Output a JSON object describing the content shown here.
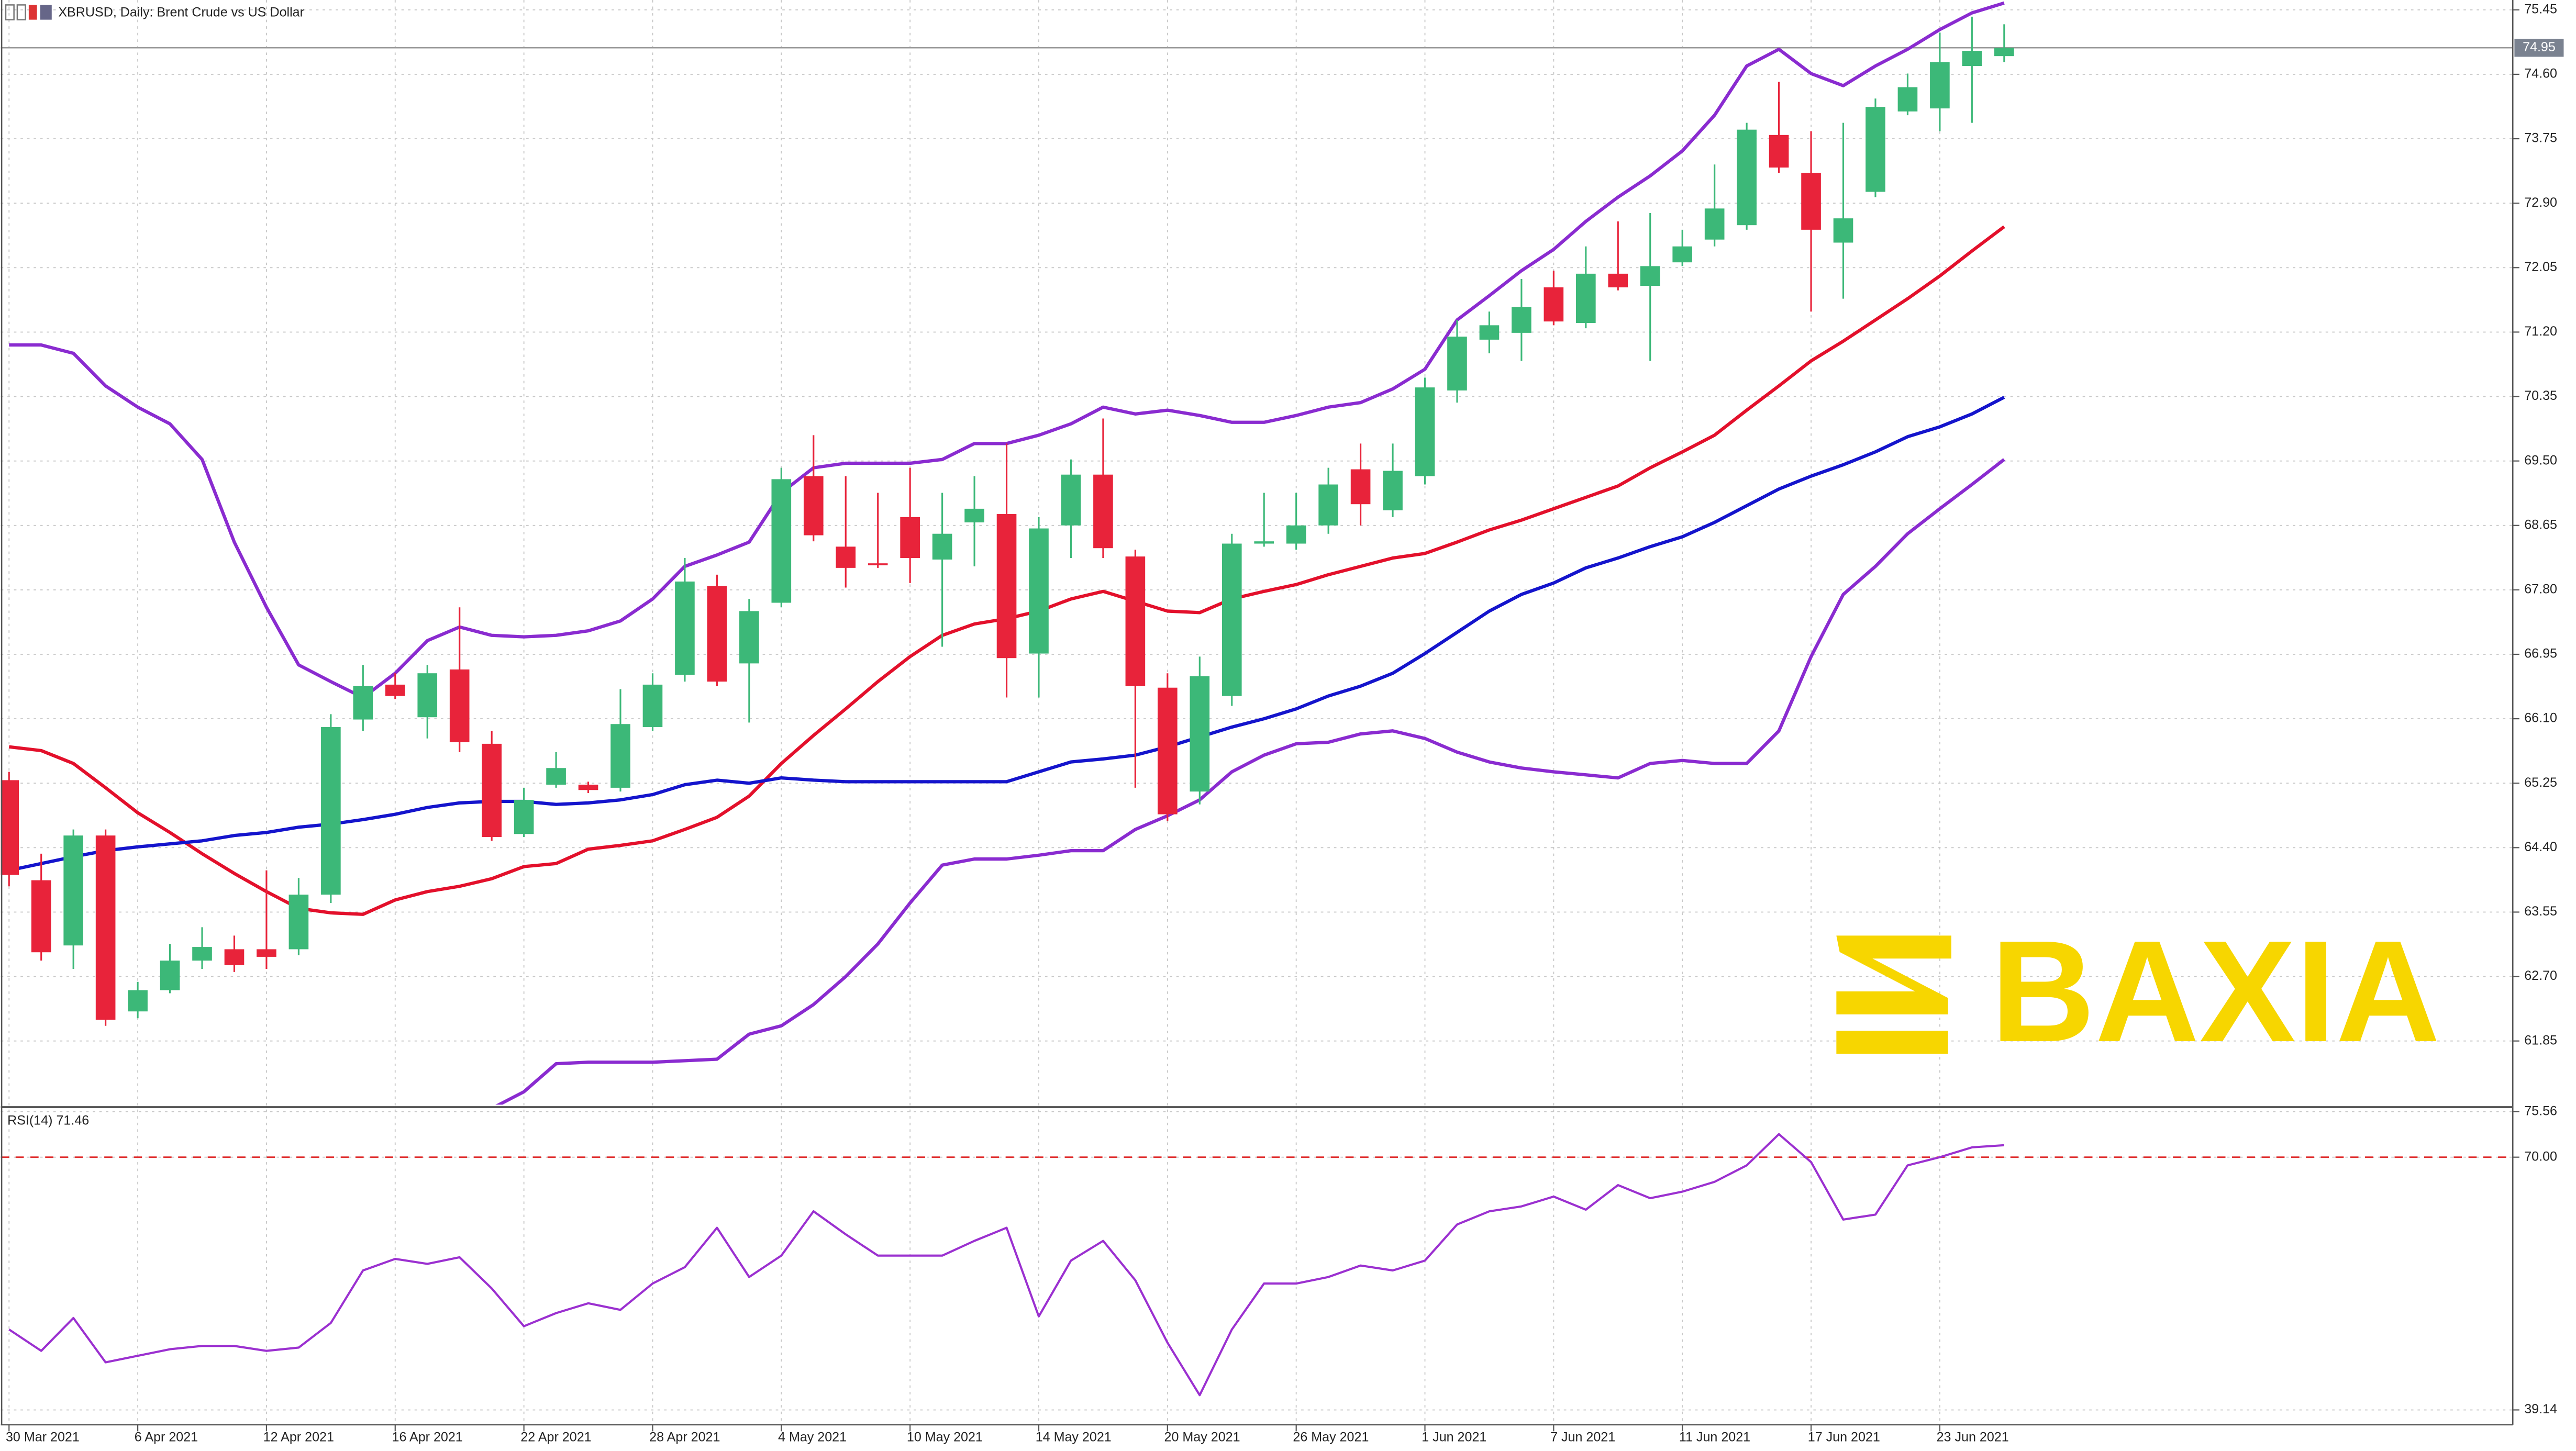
{
  "chart_data": [
    {
      "type": "candlestick",
      "title": "XBRUSD, Daily:  Brent Crude vs US Dollar",
      "watermark": "BAXIA",
      "categories": [
        "30 Mar 2021",
        null,
        null,
        null,
        "6 Apr 2021",
        null,
        null,
        null,
        "12 Apr 2021",
        null,
        null,
        null,
        "16 Apr 2021",
        null,
        null,
        null,
        "22 Apr 2021",
        null,
        null,
        null,
        "28 Apr 2021",
        null,
        null,
        null,
        "4 May 2021",
        null,
        null,
        null,
        "10 May 2021",
        null,
        null,
        null,
        "14 May 2021",
        null,
        null,
        null,
        "20 May 2021",
        null,
        null,
        null,
        "26 May 2021",
        null,
        null,
        null,
        "1 Jun 2021",
        null,
        null,
        null,
        "7 Jun 2021",
        null,
        null,
        null,
        "11 Jun 2021",
        null,
        null,
        null,
        "17 Jun 2021",
        null,
        null,
        null,
        "23 Jun 2021",
        null,
        null
      ],
      "open": [
        65.29,
        63.97,
        63.11,
        64.56,
        62.24,
        62.52,
        62.91,
        63.06,
        63.06,
        63.06,
        63.78,
        66.09,
        66.55,
        66.12,
        66.75,
        65.77,
        64.58,
        65.23,
        65.23,
        65.19,
        65.99,
        66.68,
        67.85,
        66.83,
        67.63,
        69.3,
        68.37,
        68.15,
        68.76,
        68.2,
        68.69,
        68.8,
        66.96,
        68.65,
        69.32,
        68.24,
        66.51,
        65.14,
        66.4,
        68.41,
        68.41,
        68.65,
        69.39,
        68.85,
        69.3,
        70.43,
        71.1,
        71.19,
        71.79,
        71.32,
        71.97,
        71.81,
        72.12,
        72.42,
        72.61,
        73.8,
        73.3,
        72.38,
        73.05,
        74.11,
        74.15,
        74.71,
        74.84
      ],
      "high": [
        65.4,
        64.32,
        64.64,
        64.64,
        62.63,
        63.13,
        63.35,
        63.24,
        64.1,
        64.0,
        66.16,
        66.81,
        66.7,
        66.81,
        67.57,
        65.94,
        65.19,
        65.66,
        65.27,
        66.49,
        66.7,
        68.22,
        68.0,
        67.68,
        69.41,
        69.84,
        69.3,
        69.08,
        69.41,
        69.08,
        69.3,
        69.73,
        68.76,
        69.52,
        70.06,
        68.33,
        66.7,
        66.92,
        68.54,
        69.08,
        69.08,
        69.41,
        69.73,
        69.73,
        70.6,
        71.36,
        71.47,
        71.9,
        72.01,
        72.33,
        72.66,
        72.77,
        72.55,
        73.41,
        73.96,
        74.5,
        73.85,
        73.96,
        74.28,
        74.61,
        75.15,
        75.36,
        75.26
      ],
      "low": [
        63.89,
        62.91,
        62.8,
        62.05,
        62.15,
        62.48,
        62.8,
        62.76,
        62.8,
        62.98,
        63.67,
        65.94,
        66.36,
        65.84,
        65.66,
        64.49,
        64.54,
        65.19,
        65.12,
        65.14,
        65.94,
        66.59,
        66.53,
        66.05,
        67.57,
        68.44,
        67.83,
        68.09,
        67.89,
        67.05,
        68.11,
        66.38,
        66.38,
        68.22,
        68.22,
        65.19,
        64.75,
        64.97,
        66.27,
        68.37,
        68.33,
        68.54,
        68.65,
        68.76,
        69.19,
        70.27,
        70.92,
        70.82,
        71.29,
        71.25,
        71.75,
        70.82,
        72.07,
        72.33,
        72.55,
        73.3,
        71.47,
        71.64,
        72.98,
        74.06,
        73.85,
        73.96,
        74.76
      ],
      "close": [
        64.04,
        63.02,
        64.56,
        62.13,
        62.52,
        62.91,
        63.09,
        62.85,
        62.96,
        63.78,
        65.99,
        66.53,
        66.4,
        66.7,
        65.79,
        64.54,
        65.03,
        65.45,
        65.16,
        66.03,
        66.55,
        67.91,
        66.59,
        67.52,
        69.26,
        68.52,
        68.09,
        68.13,
        68.22,
        68.54,
        68.87,
        66.9,
        68.61,
        69.32,
        68.35,
        66.53,
        64.84,
        66.66,
        68.41,
        68.44,
        68.65,
        69.19,
        68.93,
        69.37,
        70.47,
        71.14,
        71.29,
        71.53,
        71.34,
        71.97,
        71.79,
        72.07,
        72.33,
        72.83,
        73.87,
        73.37,
        72.55,
        72.7,
        74.17,
        74.43,
        74.76,
        74.91,
        74.95
      ],
      "up_color": "#3cb878",
      "down_color": "#e8233a",
      "lines": [
        {
          "color": "#8a2bd0",
          "values": [
            71.03,
            71.03,
            70.92,
            70.49,
            70.21,
            69.99,
            69.52,
            68.43,
            67.57,
            66.81,
            66.59,
            66.38,
            66.7,
            67.13,
            67.31,
            67.2,
            67.18,
            67.2,
            67.26,
            67.39,
            67.68,
            68.11,
            68.26,
            68.43,
            69.08,
            69.41,
            69.47,
            69.47,
            69.47,
            69.52,
            69.73,
            69.73,
            69.84,
            69.99,
            70.21,
            70.12,
            70.17,
            70.1,
            70.01,
            70.01,
            70.1,
            70.21,
            70.27,
            70.45,
            70.71,
            71.36,
            71.68,
            72.01,
            72.29,
            72.66,
            72.98,
            73.26,
            73.59,
            74.06,
            74.71,
            74.93,
            74.61,
            74.45,
            74.71,
            74.93,
            75.19,
            75.41,
            75.54
          ]
        },
        {
          "color": "#8a2bd0",
          "values": [
            null,
            null,
            null,
            null,
            null,
            null,
            null,
            null,
            null,
            null,
            null,
            null,
            null,
            null,
            null,
            60.96,
            61.18,
            61.55,
            61.57,
            61.57,
            61.57,
            61.59,
            61.61,
            61.94,
            62.05,
            62.33,
            62.7,
            63.13,
            63.67,
            64.17,
            64.25,
            64.25,
            64.3,
            64.36,
            64.36,
            64.64,
            64.82,
            65.03,
            65.4,
            65.62,
            65.77,
            65.79,
            65.9,
            65.94,
            65.84,
            65.66,
            65.53,
            65.45,
            65.4,
            65.36,
            65.32,
            65.51,
            65.55,
            65.51,
            65.51,
            65.94,
            66.92,
            67.74,
            68.11,
            68.54,
            68.87,
            69.19,
            69.52
          ]
        },
        {
          "color": "#e3102b",
          "values": [
            65.73,
            65.68,
            65.51,
            65.19,
            64.86,
            64.6,
            64.32,
            64.06,
            63.82,
            63.6,
            63.54,
            63.52,
            63.71,
            63.82,
            63.89,
            63.99,
            64.15,
            64.19,
            64.38,
            64.43,
            64.49,
            64.64,
            64.8,
            65.08,
            65.51,
            65.88,
            66.23,
            66.59,
            66.92,
            67.2,
            67.35,
            67.42,
            67.52,
            67.68,
            67.78,
            67.65,
            67.52,
            67.5,
            67.68,
            67.78,
            67.87,
            68.0,
            68.11,
            68.22,
            68.28,
            68.43,
            68.59,
            68.72,
            68.87,
            69.02,
            69.17,
            69.41,
            69.62,
            69.84,
            70.17,
            70.49,
            70.82,
            71.08,
            71.36,
            71.64,
            71.94,
            72.27,
            72.59
          ]
        },
        {
          "color": "#1414cc",
          "values": [
            64.1,
            64.19,
            64.28,
            64.36,
            64.41,
            64.45,
            64.49,
            64.56,
            64.6,
            64.67,
            64.71,
            64.77,
            64.84,
            64.93,
            64.99,
            65.01,
            65.01,
            64.97,
            64.99,
            65.03,
            65.1,
            65.23,
            65.29,
            65.25,
            65.32,
            65.29,
            65.27,
            65.27,
            65.27,
            65.27,
            65.27,
            65.27,
            65.4,
            65.53,
            65.57,
            65.62,
            65.73,
            65.86,
            65.99,
            66.1,
            66.23,
            66.4,
            66.53,
            66.7,
            66.96,
            67.24,
            67.52,
            67.74,
            67.89,
            68.09,
            68.22,
            68.37,
            68.5,
            68.69,
            68.91,
            69.13,
            69.3,
            69.45,
            69.62,
            69.82,
            69.95,
            70.12,
            70.34
          ]
        }
      ],
      "last_price": 74.95,
      "ylim": [
        61.01,
        75.58
      ],
      "yticks": [
        75.45,
        {
          "value": 74.6,
          "label": "74.60"
        },
        73.75,
        {
          "value": 72.9,
          "label": "72.90"
        },
        72.05,
        {
          "value": 71.2,
          "label": "71.20"
        },
        70.35,
        {
          "value": 69.5,
          "label": "69.50"
        },
        68.65,
        {
          "value": 67.8,
          "label": "67.80"
        },
        66.95,
        {
          "value": 66.1,
          "label": "66.10"
        },
        65.25,
        {
          "value": 64.4,
          "label": "64.40"
        },
        63.55,
        {
          "value": 62.7,
          "label": "62.70"
        },
        61.85
      ],
      "grid": true
    },
    {
      "type": "line",
      "title": "RSI(14) 71.46",
      "color": "#9b30d0",
      "values": [
        48.96,
        46.35,
        50.36,
        44.95,
        45.75,
        46.55,
        46.95,
        46.95,
        46.35,
        46.75,
        49.76,
        56.17,
        57.58,
        56.97,
        57.78,
        53.97,
        49.36,
        50.96,
        52.16,
        51.36,
        54.57,
        56.57,
        61.38,
        55.37,
        57.98,
        63.39,
        60.58,
        57.98,
        57.98,
        57.98,
        59.78,
        61.38,
        50.56,
        57.37,
        59.78,
        54.97,
        47.35,
        40.94,
        48.96,
        54.57,
        54.57,
        55.37,
        56.77,
        56.17,
        57.37,
        61.78,
        63.39,
        63.99,
        65.19,
        63.59,
        66.59,
        64.99,
        65.79,
        66.99,
        69.0,
        72.81,
        69.4,
        62.38,
        62.99,
        69.0,
        70.0,
        71.2,
        71.46
      ],
      "level": 70,
      "level_color": "#e03030",
      "ylim": [
        37.33,
        75.81
      ],
      "yticks": [
        75.56,
        {
          "value": 70,
          "label": "70.00"
        },
        39.14
      ]
    }
  ]
}
